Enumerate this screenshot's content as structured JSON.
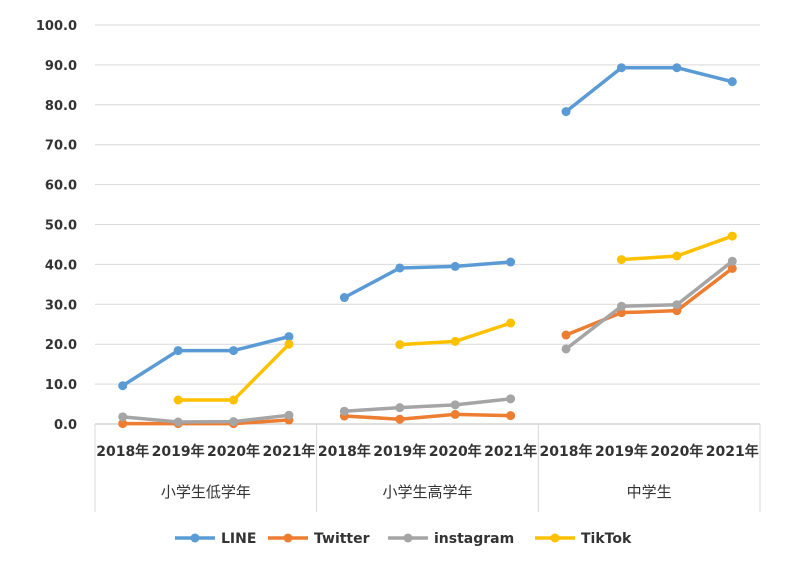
{
  "chart_data": {
    "type": "line",
    "title": "",
    "xlabel": "",
    "ylabel": "",
    "ylim": [
      0,
      100
    ],
    "yticks": [
      "0.0",
      "10.0",
      "20.0",
      "30.0",
      "40.0",
      "50.0",
      "60.0",
      "70.0",
      "80.0",
      "90.0",
      "100.0"
    ],
    "groups": [
      {
        "label": "小学生低学年",
        "categories": [
          "2018年",
          "2019年",
          "2020年",
          "2021年"
        ]
      },
      {
        "label": "小学生高学年",
        "categories": [
          "2018年",
          "2019年",
          "2020年",
          "2021年"
        ]
      },
      {
        "label": "中学生",
        "categories": [
          "2018年",
          "2019年",
          "2020年",
          "2021年"
        ]
      }
    ],
    "series": [
      {
        "name": "LINE",
        "color": "#5b9bd5",
        "values": [
          [
            9.6,
            18.4,
            18.4,
            21.9
          ],
          [
            31.7,
            39.1,
            39.5,
            40.6
          ],
          [
            78.3,
            89.3,
            89.3,
            85.8
          ]
        ]
      },
      {
        "name": "Twitter",
        "color": "#ed7d31",
        "values": [
          [
            0.1,
            0.1,
            0.1,
            1.0
          ],
          [
            2.0,
            1.2,
            2.4,
            2.1
          ],
          [
            22.3,
            27.9,
            28.4,
            39.0
          ]
        ]
      },
      {
        "name": "instagram",
        "color": "#a5a5a5",
        "values": [
          [
            1.8,
            0.5,
            0.6,
            2.2
          ],
          [
            3.2,
            4.1,
            4.8,
            6.3
          ],
          [
            18.8,
            29.5,
            29.9,
            40.8
          ]
        ]
      },
      {
        "name": "TikTok",
        "color": "#ffc000",
        "values": [
          [
            null,
            6.0,
            6.0,
            20.0
          ],
          [
            null,
            19.9,
            20.7,
            25.3
          ],
          [
            null,
            41.2,
            42.1,
            47.1
          ]
        ]
      }
    ],
    "legend_position": "bottom",
    "grid": true
  }
}
